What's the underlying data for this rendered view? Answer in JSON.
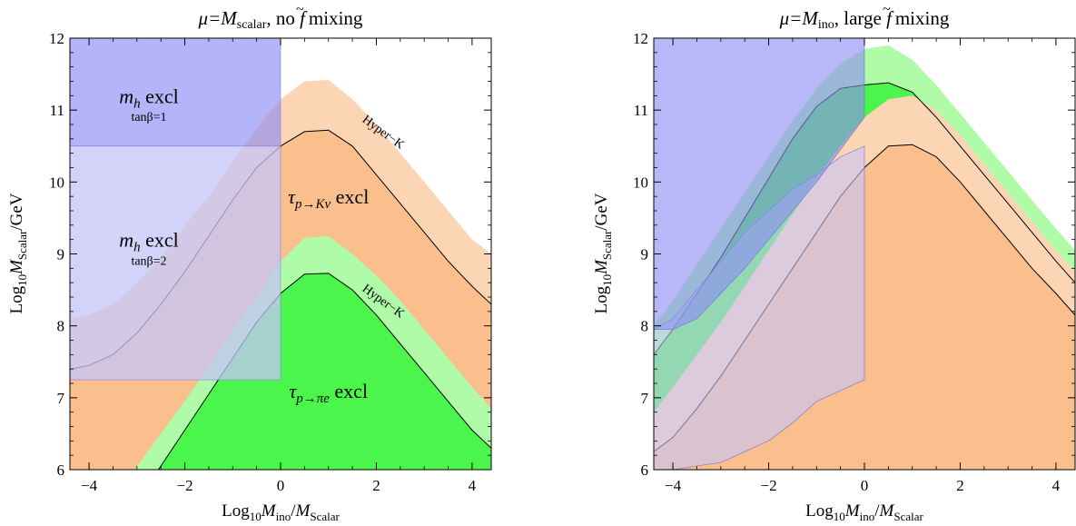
{
  "chart_data": [
    {
      "type": "area",
      "title_parts": {
        "a": "μ=",
        "b": "M",
        "c": "scalar",
        "d": ", no ",
        "e": "f",
        "f_mark": "~",
        "g": " mixing"
      },
      "xlabel_parts": {
        "a": "Log",
        "b": "10",
        "c": "M",
        "d": "ino",
        "e": "/",
        "f": "M",
        "g": "Scalar"
      },
      "ylabel_parts": {
        "a": "Log",
        "b": "10",
        "c": "M",
        "d": "Scalar",
        "e": "/GeV"
      },
      "xlim": [
        -4.4,
        4.4
      ],
      "ylim": [
        6,
        12
      ],
      "xticks": [
        -4,
        -2,
        0,
        2,
        4
      ],
      "yticks": [
        6,
        7,
        8,
        9,
        10,
        11,
        12
      ],
      "xticklabels": [
        "−4",
        "−2",
        "0",
        "2",
        "4"
      ],
      "yticklabels": [
        "6",
        "7",
        "8",
        "9",
        "10",
        "11",
        "12"
      ],
      "colors": {
        "orange_light": "#fcd5b4",
        "orange": "#fbbf8e",
        "green_light": "#b0fba8",
        "green": "#4cf54c",
        "blue": "#8c8cf5",
        "blue_light": "#c4c4f8",
        "white": "#ffffff"
      },
      "regions": [
        {
          "name": "Hyper-K Kν",
          "color": "orange_light",
          "x": [
            -4.4,
            -4,
            -3.5,
            -3,
            -2.5,
            -2,
            -1.5,
            -1,
            -0.5,
            0,
            0.5,
            1,
            1.5,
            2,
            2.5,
            3,
            3.5,
            4,
            4.4
          ],
          "y_upper": [
            8.1,
            8.15,
            8.3,
            8.6,
            8.95,
            9.4,
            9.8,
            10.3,
            10.75,
            11.15,
            11.4,
            11.42,
            11.15,
            10.8,
            10.4,
            10.0,
            9.6,
            9.2,
            9.0
          ]
        },
        {
          "name": "τ p→Kν excl",
          "color": "orange",
          "x": [
            -4.4,
            -4,
            -3.5,
            -3,
            -2.5,
            -2,
            -1.5,
            -1,
            -0.5,
            0,
            0.5,
            1,
            1.5,
            2,
            2.5,
            3,
            3.5,
            4,
            4.4
          ],
          "y_upper": [
            7.4,
            7.45,
            7.6,
            7.9,
            8.3,
            8.75,
            9.25,
            9.75,
            10.2,
            10.5,
            10.7,
            10.72,
            10.5,
            10.1,
            9.7,
            9.3,
            8.9,
            8.55,
            8.3
          ]
        },
        {
          "name": "Hyper-K πe",
          "color": "green_light",
          "x": [
            -3.05,
            -2.5,
            -2,
            -1.5,
            -1,
            -0.5,
            0,
            0.5,
            1,
            1.5,
            2,
            2.5,
            3,
            3.5,
            4,
            4.4
          ],
          "y_upper": [
            6.0,
            6.5,
            6.95,
            7.45,
            7.95,
            8.4,
            8.9,
            9.22,
            9.25,
            9.0,
            8.7,
            8.35,
            7.95,
            7.55,
            7.15,
            6.85
          ]
        },
        {
          "name": "τ p→πe excl",
          "color": "green",
          "x": [
            -2.55,
            -2,
            -1.5,
            -1,
            -0.5,
            0,
            0.5,
            1,
            1.5,
            2,
            2.5,
            3,
            3.5,
            4,
            4.4
          ],
          "y_upper": [
            6.0,
            6.55,
            7.05,
            7.55,
            8.05,
            8.45,
            8.72,
            8.73,
            8.5,
            8.15,
            7.75,
            7.35,
            6.95,
            6.55,
            6.3
          ]
        }
      ],
      "boundaries": [
        {
          "name": "Hyper-K Kν",
          "x": [
            -4.4,
            -4,
            -3.5,
            -3,
            -2.5,
            -2,
            -1.5,
            -1,
            -0.5,
            0,
            0.5,
            1,
            1.5,
            2,
            2.5,
            3,
            3.5,
            4,
            4.4
          ],
          "y": [
            7.4,
            7.45,
            7.6,
            7.9,
            8.3,
            8.75,
            9.25,
            9.75,
            10.2,
            10.5,
            10.7,
            10.72,
            10.5,
            10.1,
            9.7,
            9.3,
            8.9,
            8.55,
            8.3
          ]
        },
        {
          "name": "Hyper-K πe",
          "x": [
            -2.55,
            -2,
            -1.5,
            -1,
            -0.5,
            0,
            0.5,
            1,
            1.5,
            2,
            2.5,
            3,
            3.5,
            4,
            4.4
          ],
          "y": [
            6.0,
            6.55,
            7.05,
            7.55,
            8.05,
            8.45,
            8.72,
            8.73,
            8.5,
            8.15,
            7.75,
            7.35,
            6.95,
            6.55,
            6.3
          ]
        }
      ],
      "white_cut": {
        "x": [
          0,
          0,
          0.5,
          1,
          1.5,
          2,
          2.5,
          3,
          3.5,
          4,
          4.4
        ],
        "y": [
          10.7,
          12,
          12,
          12,
          12,
          12,
          12,
          12,
          12,
          12,
          12
        ]
      },
      "rects": [
        {
          "name": "mh excl tanβ=2",
          "color": "blue_light",
          "opacity": 0.75,
          "x": [
            -4.4,
            0
          ],
          "y": [
            7.25,
            10.5
          ]
        },
        {
          "name": "mh excl tanβ=1",
          "color": "blue",
          "opacity": 0.65,
          "x": [
            -4.4,
            0
          ],
          "y": [
            10.5,
            12
          ]
        }
      ],
      "labels": [
        {
          "main": "m",
          "sub": "h",
          "rest": " excl",
          "small": "tanβ=1",
          "x": -2.75,
          "y": 11.1,
          "ys": 10.85
        },
        {
          "main": "m",
          "sub": "h",
          "rest": " excl",
          "small": "tanβ=2",
          "x": -2.75,
          "y": 9.1,
          "ys": 8.85
        },
        {
          "main": "τ",
          "sub": "p→Kν",
          "rest": " excl",
          "x": 1.0,
          "y": 9.7
        },
        {
          "main": "τ",
          "sub": "p→πe",
          "rest": " excl",
          "x": 1.0,
          "y": 7.0
        }
      ],
      "hyperk_labels": [
        {
          "text": "Hyper−K",
          "x": 2.1,
          "y": 10.65,
          "angle": 36
        },
        {
          "text": "Hyper−K",
          "x": 2.1,
          "y": 8.3,
          "angle": 36
        }
      ]
    },
    {
      "type": "area",
      "title_parts": {
        "a": "μ=",
        "b": "M",
        "c": "ino",
        "d": ", large ",
        "e": "f",
        "f_mark": "~",
        "g": " mixing"
      },
      "xlabel_parts": {
        "a": "Log",
        "b": "10",
        "c": "M",
        "d": "ino",
        "e": "/",
        "f": "M",
        "g": "Scalar"
      },
      "ylabel_parts": {
        "a": "Log",
        "b": "10",
        "c": "M",
        "d": "Scalar",
        "e": "/GeV"
      },
      "xlim": [
        -4.4,
        4.4
      ],
      "ylim": [
        6,
        12
      ],
      "xticks": [
        -4,
        -2,
        0,
        2,
        4
      ],
      "yticks": [
        6,
        7,
        8,
        9,
        10,
        11,
        12
      ],
      "xticklabels": [
        "−4",
        "−2",
        "0",
        "2",
        "4"
      ],
      "yticklabels": [
        "6",
        "7",
        "8",
        "9",
        "10",
        "11",
        "12"
      ],
      "colors": {
        "orange_light": "#fcd5b4",
        "orange": "#fbbf8e",
        "green_light": "#b0fba8",
        "green": "#4cf54c",
        "blue": "#8c8cf5",
        "blue_light": "#c4c4f8",
        "white": "#ffffff"
      },
      "regions": [
        {
          "name": "green_light",
          "color": "green_light",
          "x": [
            -4.4,
            -4,
            -3.5,
            -3,
            -2.5,
            -2,
            -1.5,
            -1,
            -0.5,
            0,
            0.5,
            1,
            1.5,
            2,
            2.5,
            3,
            3.5,
            4,
            4.4
          ],
          "y_upper": [
            8.0,
            8.35,
            8.85,
            9.35,
            9.85,
            10.35,
            10.85,
            11.3,
            11.65,
            11.85,
            11.9,
            11.7,
            11.35,
            10.95,
            10.55,
            10.15,
            9.75,
            9.35,
            9.05
          ]
        },
        {
          "name": "green",
          "color": "green",
          "x": [
            -4.4,
            -4,
            -3.5,
            -3,
            -2.5,
            -2,
            -1.5,
            -1,
            -0.5,
            0,
            0.5,
            1,
            1.5,
            2,
            2.5,
            3,
            3.5,
            4,
            4.4
          ],
          "y_upper": [
            7.6,
            7.95,
            8.45,
            8.95,
            9.5,
            10.05,
            10.6,
            11.05,
            11.3,
            11.35,
            11.38,
            11.25,
            10.9,
            10.5,
            10.1,
            9.7,
            9.3,
            8.9,
            8.6
          ]
        },
        {
          "name": "orange_light",
          "color": "orange_light",
          "x": [
            -4.4,
            -4,
            -3.5,
            -3,
            -2.5,
            -2,
            -1.5,
            -1,
            -0.5,
            0,
            0.5,
            1,
            1.5,
            2,
            2.5,
            3,
            3.5,
            4,
            4.4
          ],
          "y_upper": [
            6.8,
            7.15,
            7.6,
            8.05,
            8.55,
            9.05,
            9.55,
            10.05,
            10.5,
            10.9,
            11.15,
            11.2,
            11.0,
            10.65,
            10.25,
            9.85,
            9.45,
            9.05,
            8.75
          ]
        },
        {
          "name": "orange",
          "color": "orange",
          "x": [
            -4.4,
            -4,
            -3.5,
            -3,
            -2.5,
            -2,
            -1.5,
            -1,
            -0.5,
            0,
            0.5,
            1,
            1.5,
            2,
            2.5,
            3,
            3.5,
            4,
            4.4
          ],
          "y_upper": [
            6.25,
            6.45,
            6.85,
            7.3,
            7.8,
            8.3,
            8.8,
            9.3,
            9.8,
            10.2,
            10.5,
            10.52,
            10.35,
            10.0,
            9.6,
            9.2,
            8.8,
            8.45,
            8.15
          ]
        }
      ],
      "boundaries": [
        {
          "name": "upper",
          "x": [
            -4.4,
            -4,
            -3.5,
            -3,
            -2.5,
            -2,
            -1.5,
            -1,
            -0.5,
            0,
            0.5,
            1,
            1.5,
            2,
            2.5,
            3,
            3.5,
            4,
            4.4
          ],
          "y": [
            7.6,
            7.95,
            8.45,
            8.95,
            9.5,
            10.05,
            10.6,
            11.05,
            11.3,
            11.35,
            11.38,
            11.25,
            10.9,
            10.5,
            10.1,
            9.7,
            9.3,
            8.9,
            8.6
          ]
        },
        {
          "name": "lower",
          "x": [
            -4.4,
            -4,
            -3.5,
            -3,
            -2.5,
            -2,
            -1.5,
            -1,
            -0.5,
            0,
            0.5,
            1,
            1.5,
            2,
            2.5,
            3,
            3.5,
            4,
            4.4
          ],
          "y": [
            6.25,
            6.45,
            6.85,
            7.3,
            7.8,
            8.3,
            8.8,
            9.3,
            9.8,
            10.2,
            10.5,
            10.52,
            10.35,
            10.0,
            9.6,
            9.2,
            8.8,
            8.45,
            8.15
          ]
        }
      ],
      "white_cut": {
        "x": [],
        "y": []
      },
      "polys": [
        {
          "name": "blue_light",
          "color": "blue_light",
          "opacity": 0.6,
          "x": [
            -4.4,
            -4,
            -3.5,
            -3,
            -2.5,
            -2,
            -1.5,
            -1,
            -0.5,
            0,
            0,
            -0.5,
            -1,
            -1.5,
            -2,
            -2.5,
            -3,
            -3.5,
            -4,
            -4.4
          ],
          "y": [
            7.95,
            8.1,
            8.5,
            8.9,
            9.3,
            9.6,
            9.9,
            10.1,
            10.35,
            10.5,
            7.25,
            7.1,
            6.95,
            6.65,
            6.4,
            6.25,
            6.1,
            6.05,
            6.0,
            6.0
          ]
        },
        {
          "name": "blue",
          "color": "blue",
          "opacity": 0.62,
          "x": [
            -4.4,
            0,
            0,
            -0.5,
            -1,
            -1.5,
            -2,
            -2.5,
            -3,
            -3.5,
            -4,
            -4.4
          ],
          "y": [
            12,
            12,
            10.9,
            10.45,
            10.0,
            9.6,
            9.2,
            8.8,
            8.45,
            8.1,
            7.95,
            7.95
          ]
        }
      ]
    }
  ]
}
